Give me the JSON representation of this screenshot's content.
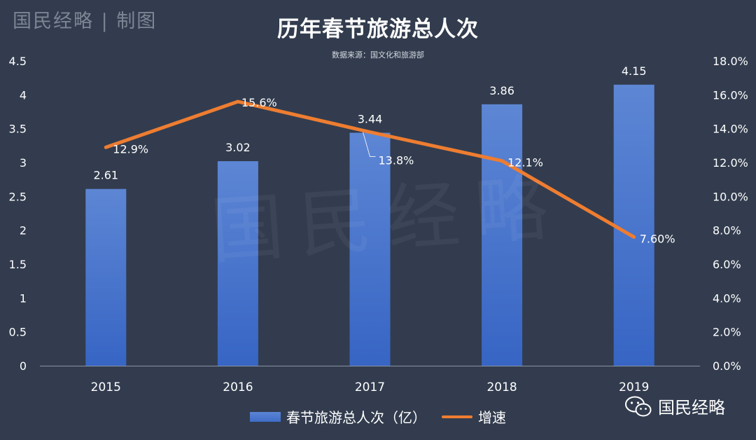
{
  "header": {
    "brand": "国民经略 | 制图",
    "title": "历年春节旅游总人次",
    "source": "数据来源：国文化和旅游部"
  },
  "watermark": "国民经略",
  "logo": {
    "icon": "wechat-icon",
    "text": "国民经略"
  },
  "chart_data": {
    "type": "bar",
    "categories": [
      "2015",
      "2016",
      "2017",
      "2018",
      "2019"
    ],
    "series": [
      {
        "name": "春节旅游总人次（亿）",
        "type": "bar",
        "axis": "left",
        "values": [
          2.61,
          3.02,
          3.44,
          3.86,
          4.15
        ],
        "labels": [
          "2.61",
          "3.02",
          "3.44",
          "3.86",
          "4.15"
        ],
        "color": "#4a78cf"
      },
      {
        "name": "增速",
        "type": "line",
        "axis": "right",
        "values": [
          12.9,
          15.6,
          13.8,
          12.1,
          7.6
        ],
        "labels": [
          "12.9%",
          "15.6%",
          "13.8%",
          "12.1%",
          "7.60%"
        ],
        "color": "#ee7d31"
      }
    ],
    "y_left": {
      "lim": [
        0,
        4.5
      ],
      "ticks": [
        "0",
        "0.5",
        "1",
        "1.5",
        "2",
        "2.5",
        "3",
        "3.5",
        "4",
        "4.5"
      ]
    },
    "y_right": {
      "lim": [
        0,
        18
      ],
      "ticks": [
        "0.0%",
        "2.0%",
        "4.0%",
        "6.0%",
        "8.0%",
        "10.0%",
        "12.0%",
        "14.0%",
        "16.0%",
        "18.0%"
      ]
    },
    "grid": false,
    "legend": "bottom"
  },
  "colors": {
    "background": "#323c4e",
    "bar": "#4a78cf",
    "line": "#ee7d31",
    "axis": "#8a93a3"
  }
}
